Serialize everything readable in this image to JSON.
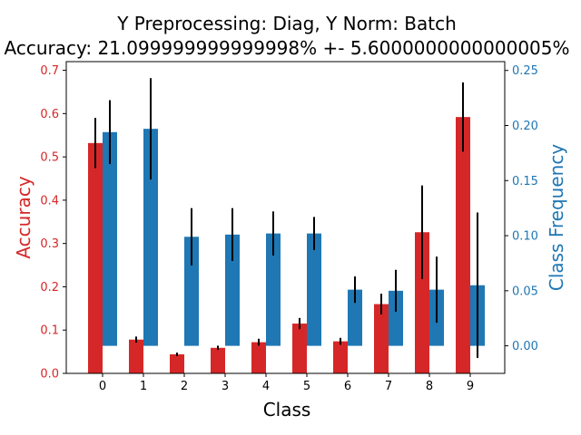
{
  "chart_data": {
    "type": "bar",
    "title_line1": "Y Preprocessing: Diag, Y Norm: Batch",
    "title_line2": "Accuracy: 21.099999999999998% +- 5.6000000000000005%",
    "xlabel": "Class",
    "ylabel_left": "Accuracy",
    "ylabel_right": "Class Frequency",
    "categories": [
      "0",
      "1",
      "2",
      "3",
      "4",
      "5",
      "6",
      "7",
      "8",
      "9"
    ],
    "ylim_left": [
      0,
      0.72
    ],
    "ylim_right": [
      -0.025,
      0.258
    ],
    "yticks_left": [
      "0.0",
      "0.1",
      "0.2",
      "0.3",
      "0.4",
      "0.5",
      "0.6",
      "0.7"
    ],
    "yticks_right": [
      "0.00",
      "0.05",
      "0.10",
      "0.15",
      "0.20",
      "0.25"
    ],
    "left_color": "#d62728",
    "right_color": "#1f77b4",
    "series": [
      {
        "name": "Accuracy",
        "axis": "left",
        "color": "#d62728",
        "values": [
          0.532,
          0.078,
          0.044,
          0.059,
          0.072,
          0.115,
          0.074,
          0.16,
          0.326,
          0.592
        ],
        "errors": [
          0.058,
          0.007,
          0.004,
          0.005,
          0.008,
          0.013,
          0.008,
          0.024,
          0.108,
          0.08
        ]
      },
      {
        "name": "Class Frequency",
        "axis": "right",
        "color": "#1f77b4",
        "values": [
          0.194,
          0.197,
          0.099,
          0.101,
          0.102,
          0.102,
          0.051,
          0.05,
          0.051,
          0.055
        ],
        "errors": [
          0.029,
          0.046,
          0.026,
          0.024,
          0.02,
          0.015,
          0.012,
          0.019,
          0.03,
          0.066
        ]
      }
    ]
  }
}
